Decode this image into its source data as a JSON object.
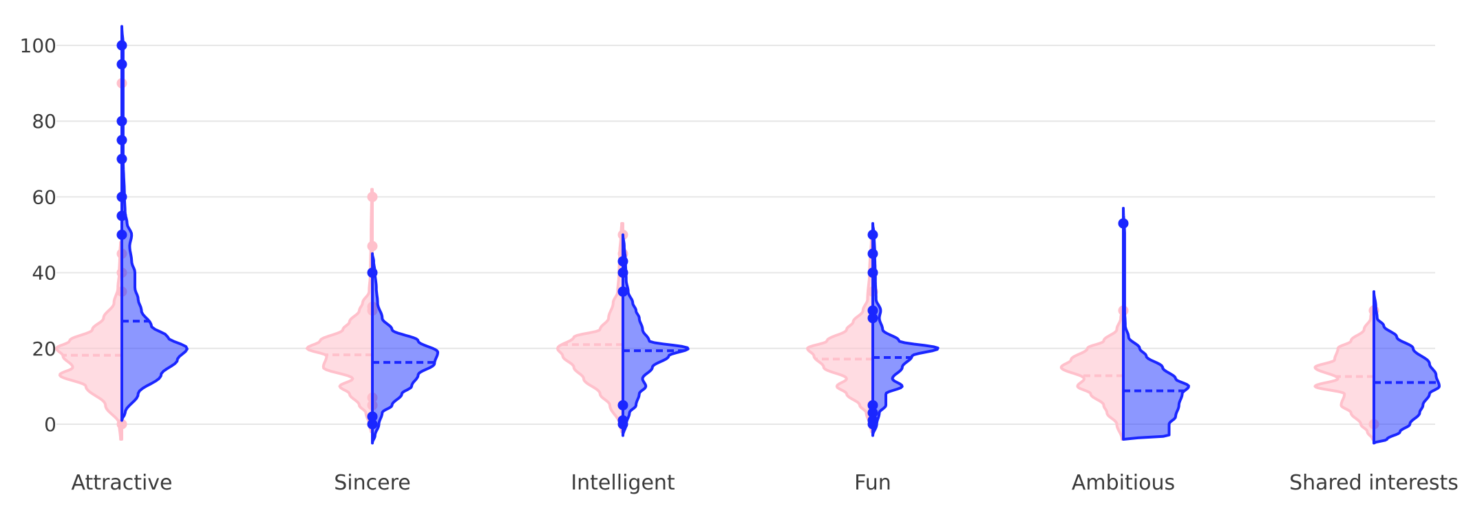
{
  "colors": {
    "left_line": "#ffc0cb",
    "left_fill": "rgba(255,192,203,0.55)",
    "right_line": "#1a26ff",
    "right_fill": "rgba(26,48,255,0.5)",
    "grid": "#e6e6e6"
  },
  "chart_data": {
    "type": "violin",
    "split": true,
    "categories": [
      "Attractive",
      "Sincere",
      "Intelligent",
      "Fun",
      "Ambitious",
      "Shared interests"
    ],
    "yticks": [
      0,
      20,
      40,
      60,
      80,
      100
    ],
    "ylim": [
      -8,
      105
    ],
    "grid": true,
    "sides": {
      "left": {
        "color": "pink",
        "violins": [
          {
            "range": [
              -4,
              48
            ],
            "mean": 18.2,
            "profile": [
              [
                -4,
                0.02
              ],
              [
                0,
                0.04
              ],
              [
                5,
                0.25
              ],
              [
                10,
                0.55
              ],
              [
                13,
                0.95
              ],
              [
                15,
                0.75
              ],
              [
                18,
                0.9
              ],
              [
                20,
                1.0
              ],
              [
                22,
                0.8
              ],
              [
                25,
                0.45
              ],
              [
                28,
                0.28
              ],
              [
                32,
                0.12
              ],
              [
                36,
                0.06
              ],
              [
                40,
                0.04
              ],
              [
                45,
                0.03
              ],
              [
                48,
                0.02
              ]
            ],
            "outliers": [
              0,
              35,
              40,
              45,
              50,
              55,
              90
            ]
          },
          {
            "range": [
              -2,
              62
            ],
            "mean": 18.3,
            "profile": [
              [
                -2,
                0.02
              ],
              [
                0,
                0.05
              ],
              [
                3,
                0.1
              ],
              [
                5,
                0.2
              ],
              [
                8,
                0.35
              ],
              [
                10,
                0.5
              ],
              [
                12,
                0.3
              ],
              [
                15,
                0.75
              ],
              [
                18,
                0.7
              ],
              [
                20,
                1.0
              ],
              [
                22,
                0.8
              ],
              [
                25,
                0.45
              ],
              [
                27,
                0.35
              ],
              [
                30,
                0.2
              ],
              [
                32,
                0.15
              ],
              [
                35,
                0.05
              ],
              [
                40,
                0.03
              ],
              [
                50,
                0.02
              ],
              [
                62,
                0.01
              ]
            ],
            "outliers": [
              0,
              2,
              5,
              7,
              30,
              31,
              47,
              60
            ]
          },
          {
            "range": [
              -2,
              53
            ],
            "mean": 21.0,
            "profile": [
              [
                -2,
                0.02
              ],
              [
                0,
                0.05
              ],
              [
                5,
                0.2
              ],
              [
                8,
                0.35
              ],
              [
                12,
                0.6
              ],
              [
                15,
                0.75
              ],
              [
                18,
                0.92
              ],
              [
                20,
                1.0
              ],
              [
                23,
                0.75
              ],
              [
                25,
                0.35
              ],
              [
                28,
                0.22
              ],
              [
                32,
                0.15
              ],
              [
                35,
                0.08
              ],
              [
                40,
                0.06
              ],
              [
                45,
                0.05
              ],
              [
                50,
                0.03
              ],
              [
                53,
                0.02
              ]
            ],
            "outliers": [
              0,
              40,
              45,
              50
            ]
          },
          {
            "range": [
              -2,
              50
            ],
            "mean": 17.2,
            "profile": [
              [
                -2,
                0.02
              ],
              [
                0,
                0.05
              ],
              [
                3,
                0.1
              ],
              [
                5,
                0.2
              ],
              [
                8,
                0.4
              ],
              [
                10,
                0.55
              ],
              [
                12,
                0.4
              ],
              [
                15,
                0.75
              ],
              [
                18,
                0.9
              ],
              [
                20,
                1.0
              ],
              [
                22,
                0.7
              ],
              [
                25,
                0.4
              ],
              [
                27,
                0.3
              ],
              [
                30,
                0.15
              ],
              [
                33,
                0.08
              ],
              [
                40,
                0.05
              ],
              [
                50,
                0.02
              ]
            ],
            "outliers": [
              0,
              3,
              5,
              30,
              35,
              40
            ]
          },
          {
            "range": [
              -4,
              30
            ],
            "mean": 12.8,
            "profile": [
              [
                -4,
                0.02
              ],
              [
                0,
                0.1
              ],
              [
                3,
                0.25
              ],
              [
                5,
                0.3
              ],
              [
                8,
                0.5
              ],
              [
                10,
                0.7
              ],
              [
                12,
                0.6
              ],
              [
                15,
                0.95
              ],
              [
                17,
                0.8
              ],
              [
                20,
                0.55
              ],
              [
                22,
                0.3
              ],
              [
                25,
                0.1
              ],
              [
                28,
                0.04
              ],
              [
                30,
                0.02
              ]
            ],
            "outliers": [
              30
            ]
          },
          {
            "range": [
              -4,
              31
            ],
            "mean": 12.6,
            "profile": [
              [
                -4,
                0.02
              ],
              [
                -2,
                0.1
              ],
              [
                0,
                0.2
              ],
              [
                3,
                0.35
              ],
              [
                5,
                0.5
              ],
              [
                8,
                0.45
              ],
              [
                10,
                0.9
              ],
              [
                12,
                0.55
              ],
              [
                15,
                0.9
              ],
              [
                17,
                0.6
              ],
              [
                20,
                0.55
              ],
              [
                22,
                0.35
              ],
              [
                25,
                0.15
              ],
              [
                28,
                0.05
              ],
              [
                31,
                0.02
              ]
            ],
            "outliers": [
              0,
              30
            ]
          }
        ]
      },
      "right": {
        "color": "blue",
        "violins": [
          {
            "range": [
              1,
              105
            ],
            "mean": 27.2,
            "profile": [
              [
                1,
                0.0
              ],
              [
                3,
                0.05
              ],
              [
                8,
                0.25
              ],
              [
                13,
                0.6
              ],
              [
                17,
                0.85
              ],
              [
                20,
                1.0
              ],
              [
                23,
                0.7
              ],
              [
                26,
                0.45
              ],
              [
                30,
                0.3
              ],
              [
                33,
                0.25
              ],
              [
                36,
                0.2
              ],
              [
                40,
                0.2
              ],
              [
                43,
                0.15
              ],
              [
                47,
                0.12
              ],
              [
                50,
                0.15
              ],
              [
                53,
                0.08
              ],
              [
                56,
                0.05
              ],
              [
                60,
                0.04
              ],
              [
                70,
                0.02
              ],
              [
                80,
                0.02
              ],
              [
                90,
                0.02
              ],
              [
                100,
                0.02
              ],
              [
                105,
                0.0
              ]
            ],
            "outliers": [
              50,
              55,
              60,
              70,
              75,
              80,
              95,
              100
            ]
          },
          {
            "range": [
              -5,
              45
            ],
            "mean": 16.3,
            "profile": [
              [
                -5,
                0.0
              ],
              [
                -3,
                0.04
              ],
              [
                0,
                0.1
              ],
              [
                3,
                0.15
              ],
              [
                5,
                0.3
              ],
              [
                8,
                0.45
              ],
              [
                10,
                0.6
              ],
              [
                13,
                0.7
              ],
              [
                16,
                0.95
              ],
              [
                19,
                1.0
              ],
              [
                22,
                0.7
              ],
              [
                25,
                0.3
              ],
              [
                28,
                0.15
              ],
              [
                32,
                0.08
              ],
              [
                36,
                0.06
              ],
              [
                40,
                0.04
              ],
              [
                43,
                0.02
              ],
              [
                45,
                0.0
              ]
            ],
            "outliers": [
              0,
              2,
              40
            ]
          },
          {
            "range": [
              -3,
              50
            ],
            "mean": 19.4,
            "profile": [
              [
                -3,
                0.0
              ],
              [
                0,
                0.05
              ],
              [
                3,
                0.1
              ],
              [
                5,
                0.2
              ],
              [
                8,
                0.25
              ],
              [
                10,
                0.35
              ],
              [
                12,
                0.3
              ],
              [
                15,
                0.45
              ],
              [
                18,
                0.7
              ],
              [
                20,
                1.0
              ],
              [
                22,
                0.4
              ],
              [
                25,
                0.3
              ],
              [
                28,
                0.25
              ],
              [
                30,
                0.2
              ],
              [
                32,
                0.15
              ],
              [
                35,
                0.08
              ],
              [
                38,
                0.05
              ],
              [
                43,
                0.04
              ],
              [
                47,
                0.02
              ],
              [
                50,
                0.0
              ]
            ],
            "outliers": [
              0,
              1,
              5,
              35,
              40,
              43
            ]
          },
          {
            "range": [
              -3,
              53
            ],
            "mean": 17.6,
            "profile": [
              [
                -3,
                0.0
              ],
              [
                0,
                0.06
              ],
              [
                3,
                0.1
              ],
              [
                5,
                0.2
              ],
              [
                8,
                0.2
              ],
              [
                10,
                0.45
              ],
              [
                12,
                0.3
              ],
              [
                15,
                0.45
              ],
              [
                18,
                0.6
              ],
              [
                20,
                1.0
              ],
              [
                22,
                0.4
              ],
              [
                25,
                0.15
              ],
              [
                28,
                0.1
              ],
              [
                30,
                0.12
              ],
              [
                33,
                0.05
              ],
              [
                38,
                0.04
              ],
              [
                45,
                0.03
              ],
              [
                50,
                0.02
              ],
              [
                53,
                0.0
              ]
            ],
            "outliers": [
              0,
              1,
              3,
              5,
              28,
              30,
              40,
              45,
              50
            ]
          },
          {
            "range": [
              -4,
              57
            ],
            "mean": 8.8,
            "profile": [
              [
                -4,
                0.0
              ],
              [
                -3,
                0.7
              ],
              [
                0,
                0.7
              ],
              [
                2,
                0.8
              ],
              [
                5,
                0.85
              ],
              [
                8,
                0.9
              ],
              [
                10,
                1.0
              ],
              [
                12,
                0.8
              ],
              [
                15,
                0.6
              ],
              [
                18,
                0.35
              ],
              [
                20,
                0.25
              ],
              [
                23,
                0.08
              ],
              [
                26,
                0.03
              ],
              [
                30,
                0.02
              ],
              [
                40,
                0.02
              ],
              [
                50,
                0.02
              ],
              [
                57,
                0.0
              ]
            ],
            "outliers": [
              53
            ]
          },
          {
            "range": [
              -5,
              35
            ],
            "mean": 11.0,
            "profile": [
              [
                -5,
                0.0
              ],
              [
                -4,
                0.2
              ],
              [
                -2,
                0.4
              ],
              [
                0,
                0.55
              ],
              [
                3,
                0.7
              ],
              [
                5,
                0.75
              ],
              [
                8,
                0.85
              ],
              [
                10,
                1.0
              ],
              [
                13,
                0.95
              ],
              [
                16,
                0.85
              ],
              [
                20,
                0.6
              ],
              [
                23,
                0.35
              ],
              [
                26,
                0.15
              ],
              [
                28,
                0.05
              ],
              [
                31,
                0.03
              ],
              [
                35,
                0.0
              ]
            ],
            "outliers": []
          }
        ]
      }
    }
  }
}
